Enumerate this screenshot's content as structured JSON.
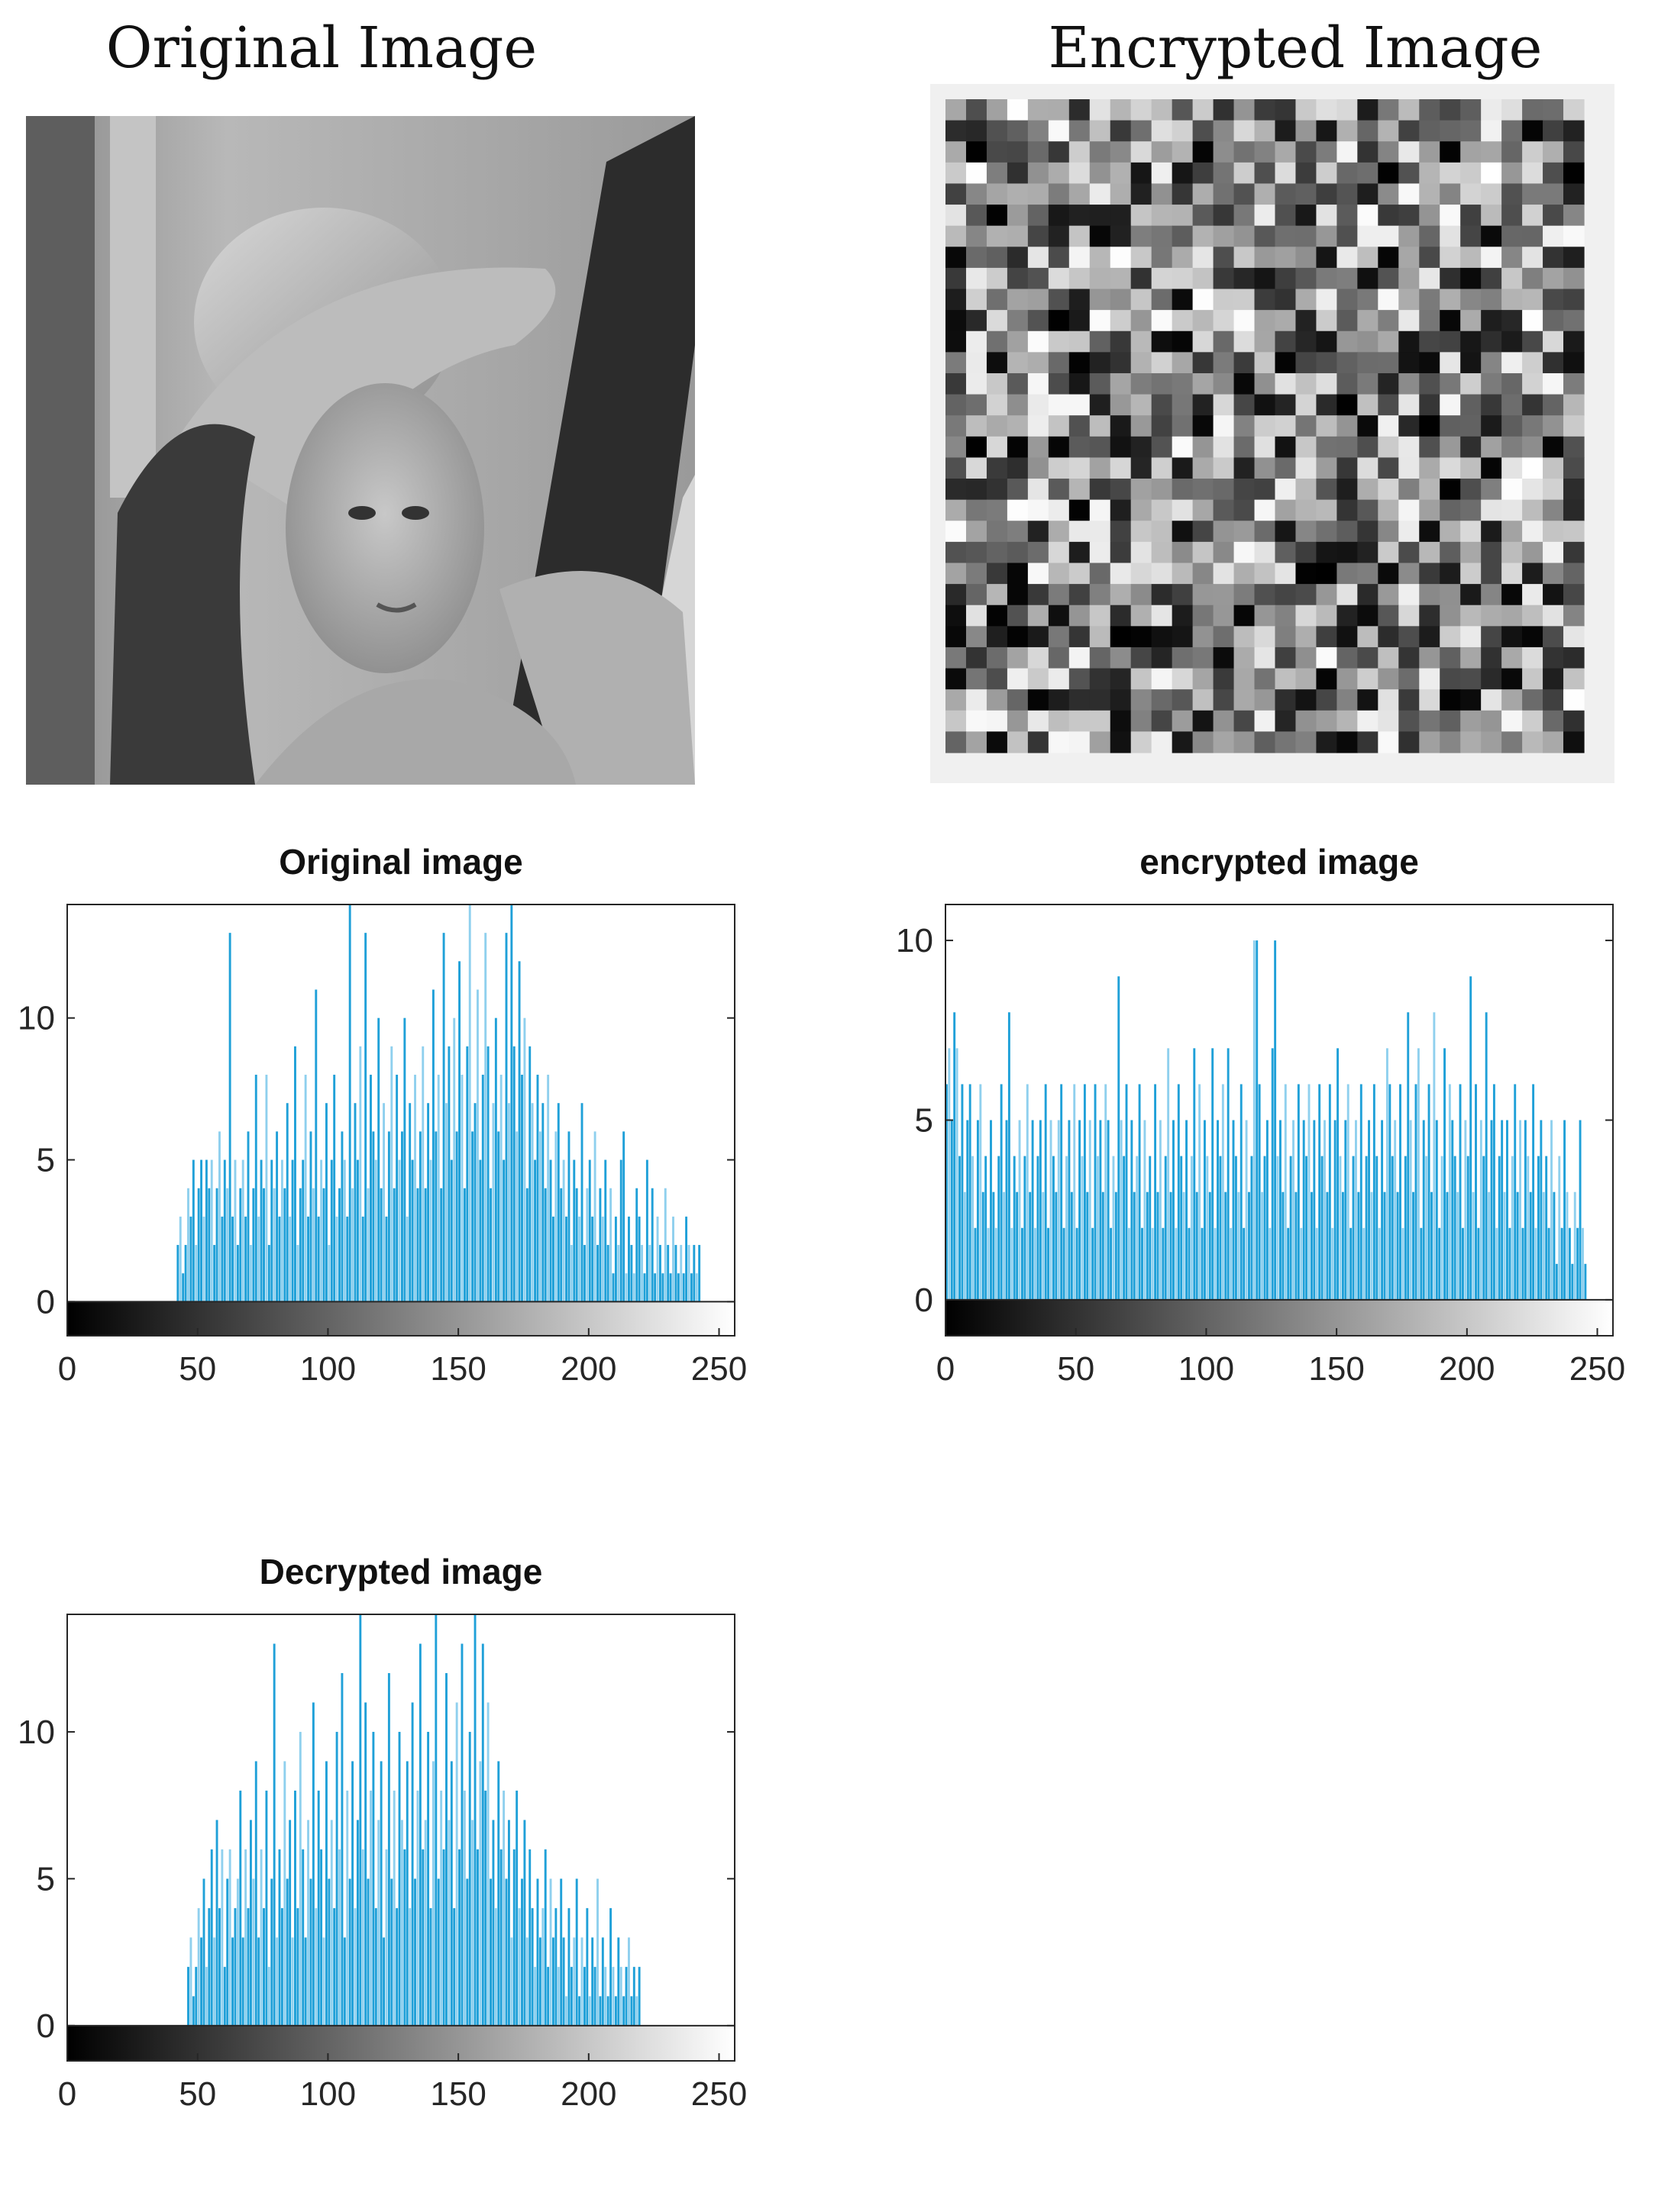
{
  "panels": {
    "original": {
      "title": "Original Image"
    },
    "encrypted": {
      "title": "Encrypted Image"
    }
  },
  "colors": {
    "bar": "#1fa0d8",
    "bar_light": "#8fd0ee",
    "axis": "#262626",
    "bg_box": "#f0f0f0"
  },
  "chart_data": [
    {
      "type": "bar",
      "title": "Original image",
      "xlabel": "",
      "ylabel": "",
      "xlim": [
        0,
        256
      ],
      "ylim": [
        -1.2,
        14
      ],
      "xticks": [
        0,
        50,
        100,
        150,
        200,
        250
      ],
      "yticks": [
        0,
        5,
        10
      ],
      "colorbar": "grayscale 0-255 along x axis",
      "grid": false,
      "values_desc": "per-intensity pixel counts, nonzero for intensities ~42-219",
      "start": 42,
      "values": [
        2,
        3,
        1,
        2,
        4,
        3,
        5,
        2,
        4,
        5,
        3,
        5,
        4,
        5,
        2,
        4,
        6,
        3,
        5,
        4,
        13,
        3,
        5,
        2,
        4,
        5,
        3,
        6,
        2,
        4,
        8,
        3,
        5,
        4,
        8,
        2,
        5,
        4,
        6,
        3,
        5,
        4,
        7,
        3,
        5,
        9,
        2,
        4,
        5,
        8,
        3,
        6,
        4,
        11,
        3,
        5,
        4,
        7,
        2,
        5,
        8,
        3,
        4,
        6,
        5,
        3,
        14,
        4,
        7,
        5,
        9,
        3,
        13,
        4,
        8,
        6,
        5,
        10,
        4,
        7,
        3,
        6,
        9,
        4,
        8,
        5,
        6,
        10,
        3,
        7,
        5,
        8,
        4,
        6,
        9,
        4,
        7,
        5,
        11,
        6,
        8,
        4,
        13,
        7,
        9,
        5,
        10,
        6,
        12,
        8,
        4,
        9,
        14,
        6,
        7,
        11,
        5,
        8,
        13,
        9,
        4,
        7,
        10,
        6,
        8,
        5,
        13,
        7,
        14,
        9,
        6,
        12,
        8,
        10,
        4,
        9,
        7,
        5,
        8,
        6,
        7,
        4,
        8,
        5,
        3,
        6,
        7,
        4,
        5,
        3,
        6,
        2,
        5,
        4,
        3,
        7,
        2,
        4,
        5,
        3,
        6,
        2,
        4,
        3,
        5,
        2,
        4,
        1,
        3,
        2,
        5,
        6,
        1,
        3,
        2,
        1,
        4,
        3,
        2,
        1,
        5,
        2,
        4,
        1,
        3,
        2,
        1,
        4,
        2,
        1,
        3,
        2,
        1,
        2,
        1,
        3,
        2,
        1,
        2,
        1,
        2
      ]
    },
    {
      "type": "bar",
      "title": "encrypted image",
      "xlabel": "",
      "ylabel": "",
      "xlim": [
        0,
        256
      ],
      "ylim": [
        -1,
        11
      ],
      "xticks": [
        0,
        50,
        100,
        150,
        200,
        250
      ],
      "yticks": [
        0,
        5,
        10
      ],
      "colorbar": "grayscale 0-255 along x axis",
      "grid": false,
      "values_desc": "roughly uniform pixel counts across all intensities",
      "start": 0,
      "values": [
        6,
        7,
        5,
        8,
        7,
        4,
        6,
        3,
        5,
        6,
        4,
        2,
        5,
        6,
        3,
        4,
        2,
        5,
        3,
        2,
        4,
        6,
        3,
        5,
        8,
        2,
        4,
        3,
        5,
        2,
        4,
        6,
        3,
        5,
        2,
        4,
        5,
        3,
        6,
        2,
        5,
        4,
        3,
        5,
        6,
        2,
        4,
        5,
        3,
        6,
        2,
        5,
        4,
        6,
        3,
        5,
        2,
        6,
        4,
        5,
        3,
        6,
        5,
        2,
        4,
        3,
        9,
        5,
        4,
        6,
        2,
        5,
        3,
        4,
        6,
        2,
        5,
        3,
        4,
        2,
        6,
        3,
        5,
        2,
        4,
        7,
        3,
        5,
        2,
        6,
        4,
        3,
        5,
        2,
        4,
        7,
        3,
        6,
        2,
        5,
        4,
        3,
        7,
        2,
        5,
        4,
        6,
        3,
        7,
        2,
        5,
        4,
        3,
        6,
        2,
        5,
        3,
        4,
        10,
        10,
        6,
        3,
        4,
        5,
        2,
        7,
        10,
        4,
        5,
        3,
        6,
        2,
        4,
        5,
        3,
        6,
        2,
        5,
        4,
        6,
        3,
        5,
        2,
        6,
        4,
        5,
        3,
        6,
        2,
        5,
        7,
        4,
        3,
        5,
        6,
        2,
        4,
        5,
        3,
        6,
        2,
        4,
        5,
        3,
        6,
        4,
        2,
        5,
        3,
        7,
        6,
        4,
        5,
        3,
        6,
        2,
        4,
        8,
        5,
        3,
        6,
        7,
        2,
        5,
        4,
        6,
        3,
        8,
        5,
        2,
        4,
        7,
        3,
        6,
        5,
        4,
        3,
        6,
        2,
        5,
        4,
        9,
        3,
        6,
        2,
        5,
        4,
        8,
        3,
        5,
        6,
        2,
        4,
        5,
        3,
        5,
        2,
        4,
        6,
        3,
        5,
        2,
        5,
        4,
        3,
        6,
        2,
        4,
        5,
        3,
        4,
        2,
        5,
        3,
        1,
        4,
        2,
        5,
        3,
        2,
        1,
        3,
        2,
        5,
        2,
        1
      ]
    },
    {
      "type": "bar",
      "title": "Decrypted image",
      "xlabel": "",
      "ylabel": "",
      "xlim": [
        0,
        256
      ],
      "ylim": [
        -1.2,
        14
      ],
      "xticks": [
        0,
        50,
        100,
        150,
        200,
        250
      ],
      "yticks": [
        0,
        5,
        10
      ],
      "colorbar": "grayscale 0-255 along x axis",
      "grid": false,
      "values_desc": "per-intensity pixel counts, nonzero for intensities ~46-225",
      "start": 46,
      "values": [
        2,
        3,
        1,
        2,
        4,
        3,
        5,
        2,
        4,
        6,
        3,
        7,
        4,
        6,
        2,
        5,
        6,
        3,
        4,
        5,
        8,
        3,
        6,
        4,
        7,
        5,
        9,
        3,
        6,
        4,
        8,
        2,
        5,
        13,
        3,
        6,
        4,
        9,
        5,
        7,
        3,
        8,
        4,
        10,
        6,
        3,
        7,
        5,
        11,
        4,
        8,
        6,
        3,
        9,
        5,
        7,
        4,
        10,
        6,
        12,
        3,
        8,
        5,
        9,
        4,
        7,
        14,
        6,
        11,
        5,
        8,
        10,
        4,
        7,
        9,
        3,
        6,
        12,
        5,
        8,
        4,
        10,
        7,
        6,
        9,
        4,
        11,
        5,
        8,
        13,
        6,
        7,
        10,
        4,
        9,
        14,
        5,
        8,
        6,
        12,
        7,
        9,
        4,
        11,
        6,
        13,
        8,
        5,
        10,
        7,
        14,
        6,
        9,
        13,
        8,
        11,
        5,
        7,
        4,
        9,
        6,
        8,
        5,
        7,
        3,
        6,
        8,
        4,
        5,
        7,
        3,
        6,
        4,
        2,
        5,
        3,
        4,
        6,
        2,
        5,
        3,
        4,
        2,
        5,
        3,
        1,
        4,
        2,
        3,
        5,
        1,
        3,
        2,
        4,
        1,
        3,
        2,
        5,
        1,
        3,
        2,
        1,
        4,
        2,
        1,
        3,
        2,
        1,
        2,
        3,
        1,
        2,
        1,
        2
      ]
    }
  ]
}
